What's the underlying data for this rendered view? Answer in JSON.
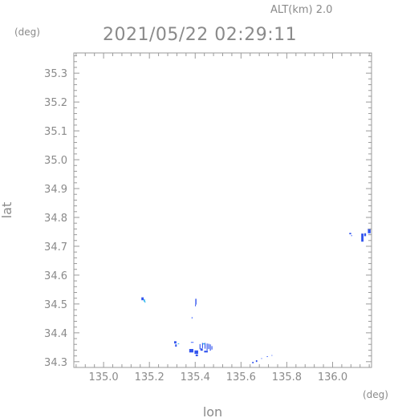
{
  "chart_data": {
    "type": "scatter",
    "altitude_label": "ALT(km) 2.0",
    "timestamp": "2021/05/22 02:29:11",
    "xlabel": "lon",
    "ylabel": "lat",
    "x_unit": "(deg)",
    "y_unit": "(deg)",
    "xlim": [
      134.87,
      136.17
    ],
    "ylim": [
      34.28,
      35.37
    ],
    "x_ticks": [
      135.0,
      135.2,
      135.4,
      135.6,
      135.8,
      136.0
    ],
    "x_tick_labels": [
      "135.0",
      "135.2",
      "135.4",
      "135.6",
      "135.8",
      "136.0"
    ],
    "y_ticks": [
      34.3,
      34.4,
      34.5,
      34.6,
      34.7,
      34.8,
      34.9,
      35.0,
      35.1,
      35.2,
      35.3
    ],
    "y_tick_labels": [
      "34.3",
      "34.4",
      "34.5",
      "34.6",
      "34.7",
      "34.8",
      "34.9",
      "35.0",
      "35.1",
      "35.2",
      "35.3"
    ],
    "minor_ticks_per_major": 5,
    "grid": false,
    "colors": {
      "frame": "#9a9a9a",
      "text": "#8a8a8a",
      "echo_strong": "#3355ee",
      "echo_medium": "#5577ff",
      "echo_light": "#33bbee"
    },
    "echo_points": [
      {
        "lon": 135.17,
        "lat": 34.518,
        "w": 0.01,
        "h": 0.01,
        "level": "strong"
      },
      {
        "lon": 135.178,
        "lat": 34.512,
        "w": 0.006,
        "h": 0.008,
        "level": "light"
      },
      {
        "lon": 135.181,
        "lat": 34.507,
        "w": 0.004,
        "h": 0.005,
        "level": "light"
      },
      {
        "lon": 135.403,
        "lat": 34.508,
        "w": 0.005,
        "h": 0.02,
        "level": "strong"
      },
      {
        "lon": 135.401,
        "lat": 34.495,
        "w": 0.003,
        "h": 0.006,
        "level": "strong"
      },
      {
        "lon": 135.386,
        "lat": 34.452,
        "w": 0.003,
        "h": 0.006,
        "level": "medium"
      },
      {
        "lon": 135.313,
        "lat": 34.367,
        "w": 0.01,
        "h": 0.008,
        "level": "strong"
      },
      {
        "lon": 135.316,
        "lat": 34.356,
        "w": 0.007,
        "h": 0.008,
        "level": "strong"
      },
      {
        "lon": 135.327,
        "lat": 34.362,
        "w": 0.006,
        "h": 0.003,
        "level": "light"
      },
      {
        "lon": 135.387,
        "lat": 34.367,
        "w": 0.012,
        "h": 0.003,
        "level": "medium"
      },
      {
        "lon": 135.383,
        "lat": 34.338,
        "w": 0.018,
        "h": 0.012,
        "level": "strong"
      },
      {
        "lon": 135.405,
        "lat": 34.333,
        "w": 0.016,
        "h": 0.012,
        "level": "strong"
      },
      {
        "lon": 135.407,
        "lat": 34.322,
        "w": 0.01,
        "h": 0.006,
        "level": "strong"
      },
      {
        "lon": 135.421,
        "lat": 34.352,
        "w": 0.004,
        "h": 0.018,
        "level": "strong"
      },
      {
        "lon": 135.428,
        "lat": 34.342,
        "w": 0.01,
        "h": 0.008,
        "level": "strong"
      },
      {
        "lon": 135.432,
        "lat": 34.356,
        "w": 0.004,
        "h": 0.018,
        "level": "strong"
      },
      {
        "lon": 135.443,
        "lat": 34.355,
        "w": 0.004,
        "h": 0.02,
        "level": "strong"
      },
      {
        "lon": 135.452,
        "lat": 34.351,
        "w": 0.004,
        "h": 0.024,
        "level": "strong"
      },
      {
        "lon": 135.459,
        "lat": 34.353,
        "w": 0.004,
        "h": 0.018,
        "level": "strong"
      },
      {
        "lon": 135.466,
        "lat": 34.349,
        "w": 0.004,
        "h": 0.022,
        "level": "strong"
      },
      {
        "lon": 135.447,
        "lat": 34.335,
        "w": 0.016,
        "h": 0.006,
        "level": "strong"
      },
      {
        "lon": 135.473,
        "lat": 34.348,
        "w": 0.004,
        "h": 0.012,
        "level": "strong"
      },
      {
        "lon": 135.438,
        "lat": 34.362,
        "w": 0.008,
        "h": 0.004,
        "level": "light"
      },
      {
        "lon": 135.652,
        "lat": 34.297,
        "w": 0.006,
        "h": 0.005,
        "level": "strong"
      },
      {
        "lon": 135.668,
        "lat": 34.302,
        "w": 0.006,
        "h": 0.006,
        "level": "strong"
      },
      {
        "lon": 135.69,
        "lat": 34.311,
        "w": 0.004,
        "h": 0.003,
        "level": "medium"
      },
      {
        "lon": 135.715,
        "lat": 34.318,
        "w": 0.006,
        "h": 0.002,
        "level": "medium"
      },
      {
        "lon": 135.735,
        "lat": 34.322,
        "w": 0.004,
        "h": 0.002,
        "level": "medium"
      },
      {
        "lon": 136.077,
        "lat": 34.744,
        "w": 0.008,
        "h": 0.005,
        "level": "strong"
      },
      {
        "lon": 136.083,
        "lat": 34.737,
        "w": 0.004,
        "h": 0.004,
        "level": "medium"
      },
      {
        "lon": 136.13,
        "lat": 34.73,
        "w": 0.01,
        "h": 0.028,
        "level": "strong"
      },
      {
        "lon": 136.142,
        "lat": 34.74,
        "w": 0.008,
        "h": 0.01,
        "level": "strong"
      },
      {
        "lon": 136.16,
        "lat": 34.753,
        "w": 0.012,
        "h": 0.016,
        "level": "strong"
      }
    ]
  }
}
